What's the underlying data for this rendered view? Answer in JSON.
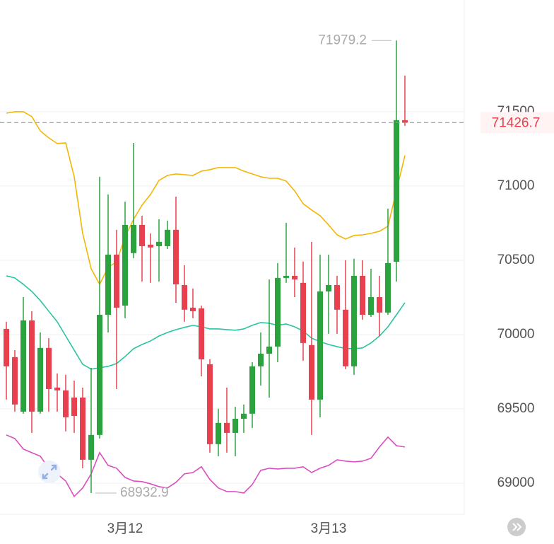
{
  "chart_data": {
    "type": "candlestick",
    "categories": [
      null,
      null,
      null,
      null,
      null,
      null,
      null,
      null,
      null,
      null,
      null,
      null,
      null,
      null,
      "3月12",
      null,
      null,
      null,
      null,
      null,
      null,
      null,
      null,
      null,
      null,
      null,
      null,
      null,
      null,
      null,
      null,
      null,
      null,
      null,
      null,
      null,
      null,
      null,
      "3月13",
      null,
      null,
      null,
      null,
      null,
      null,
      null,
      null,
      null
    ],
    "open": [
      70038,
      69848,
      69481,
      70095,
      69481,
      69910,
      69643,
      69624,
      69576,
      69576,
      69157,
      69324,
      70133,
      70538,
      70195,
      70548,
      70738,
      70605,
      70595,
      70595,
      70705,
      70333,
      70181,
      70176,
      69800,
      69262,
      69405,
      69338,
      69433,
      69467,
      69786,
      69871,
      69919,
      70381,
      70395,
      70348,
      69929,
      69562,
      70290,
      70333,
      70167,
      69786,
      70395,
      70133,
      70252,
      70148,
      70490,
      71443
    ],
    "high": [
      70086,
      69895,
      70252,
      70157,
      70014,
      69976,
      69738,
      69729,
      69690,
      69643,
      69776,
      71062,
      70943,
      70705,
      70895,
      71290,
      70800,
      70681,
      70776,
      70767,
      70929,
      70467,
      70310,
      70195,
      69833,
      69500,
      69643,
      69514,
      69529,
      69814,
      70014,
      70371,
      70481,
      70752,
      70586,
      70491,
      70624,
      70538,
      70538,
      70395,
      70500,
      70510,
      70500,
      70443,
      70395,
      70848,
      71979.2,
      71743
    ],
    "low": [
      69562,
      69481,
      69467,
      69338,
      69467,
      69481,
      69481,
      69348,
      69338,
      69100,
      68932.9,
      69300,
      70014,
      69633,
      70110,
      70514,
      70357,
      70348,
      70357,
      70576,
      70214,
      70086,
      70110,
      69719,
      69205,
      69181,
      69205,
      69181,
      69338,
      69371,
      69657,
      69576,
      69814,
      70348,
      70252,
      69824,
      69324,
      69443,
      70005,
      70005,
      69767,
      69729,
      70100,
      70119,
      69990,
      70133,
      70357,
      71405
    ],
    "close": [
      69786,
      69529,
      70095,
      69481,
      69910,
      69633,
      69624,
      69443,
      69452,
      69157,
      69324,
      70133,
      70538,
      70181,
      70738,
      70738,
      70595,
      70586,
      70624,
      70705,
      70338,
      70167,
      70157,
      69833,
      69262,
      69405,
      69338,
      69433,
      69467,
      69786,
      69871,
      69919,
      70381,
      70395,
      70371,
      69943,
      69562,
      70290,
      70333,
      70167,
      69786,
      70395,
      70133,
      70252,
      70148,
      70481,
      71443,
      71426.7
    ],
    "up_color": "#2aa33f",
    "down_color": "#e8404e",
    "bands": [
      {
        "color": "#f2b705",
        "values": [
          71490,
          71500,
          71500,
          71467,
          71371,
          71324,
          71286,
          71290,
          71062,
          70681,
          70443,
          70338,
          70452,
          70490,
          70657,
          70776,
          70871,
          70943,
          71038,
          71071,
          71081,
          71076,
          71071,
          71100,
          71110,
          71124,
          71124,
          71124,
          71100,
          71081,
          71062,
          71052,
          71052,
          71033,
          70967,
          70881,
          70838,
          70800,
          70738,
          70671,
          70643,
          70667,
          70671,
          70681,
          70695,
          70729,
          70967,
          71205
        ]
      },
      {
        "color": "#2bc4a0",
        "values": [
          70395,
          70381,
          70338,
          70290,
          70229,
          70157,
          70086,
          69990,
          69895,
          69800,
          69767,
          69776,
          69786,
          69805,
          69852,
          69905,
          69933,
          69957,
          69990,
          70014,
          70033,
          70048,
          70062,
          70052,
          70038,
          70038,
          70033,
          70029,
          70038,
          70062,
          70081,
          70076,
          70062,
          70071,
          70052,
          70024,
          69976,
          69952,
          69933,
          69919,
          69905,
          69905,
          69910,
          69943,
          69990,
          70052,
          70133,
          70214
        ]
      },
      {
        "color": "#d94fc0",
        "values": [
          69324,
          69300,
          69229,
          69205,
          69181,
          69100,
          69062,
          69014,
          68910,
          68967,
          69062,
          69205,
          69119,
          69100,
          69038,
          69014,
          69010,
          68995,
          68976,
          68967,
          69005,
          69062,
          69071,
          69110,
          69024,
          68967,
          68943,
          68943,
          68933,
          68990,
          69086,
          69100,
          69095,
          69100,
          69100,
          69110,
          69071,
          69100,
          69119,
          69157,
          69148,
          69143,
          69148,
          69167,
          69243,
          69310,
          69252,
          69243
        ]
      }
    ],
    "ylim": [
      68790,
      72252
    ],
    "yticks": [
      69000,
      69500,
      70000,
      70500,
      71000,
      71500
    ],
    "grid": true,
    "price_color": "#e8404e"
  }
}
